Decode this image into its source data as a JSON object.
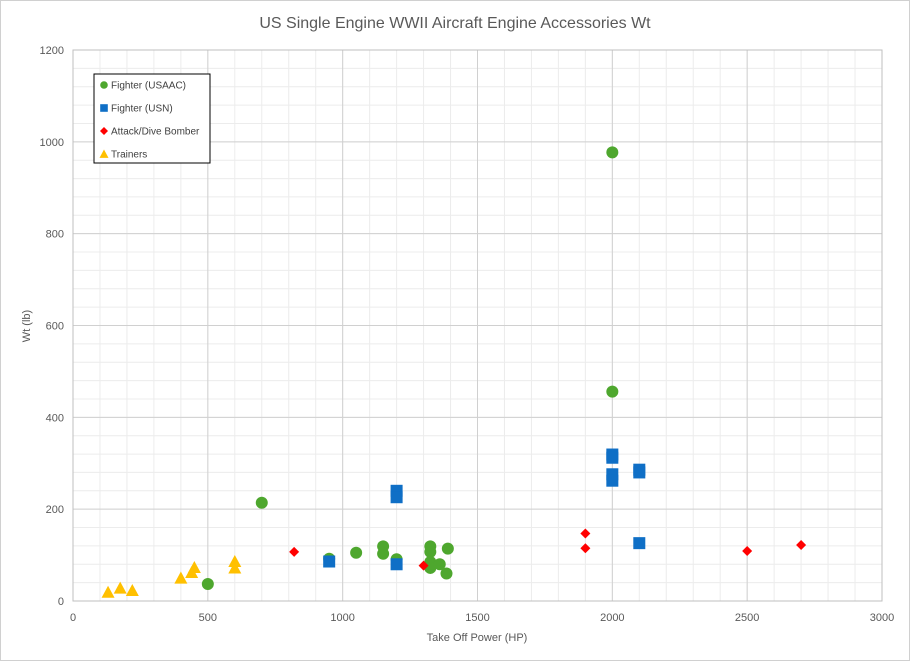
{
  "chart_data": {
    "type": "scatter",
    "title": "US Single Engine WWII Aircraft Engine  Accessories Wt",
    "xlabel": "Take Off Power (HP)",
    "ylabel": "Wt (lb)",
    "xlim": [
      0,
      3000
    ],
    "ylim": [
      0,
      1200
    ],
    "x_ticks": [
      0,
      500,
      1000,
      1500,
      2000,
      2500,
      3000
    ],
    "y_ticks": [
      0,
      200,
      400,
      600,
      800,
      1000,
      1200
    ],
    "grid": true,
    "legend_position": "top-left",
    "series": [
      {
        "name": "Fighter (USAAC)",
        "marker": "circle",
        "color": "#4ea72e",
        "points": [
          [
            500,
            37
          ],
          [
            700,
            214
          ],
          [
            950,
            92
          ],
          [
            1050,
            105
          ],
          [
            1150,
            119
          ],
          [
            1150,
            103
          ],
          [
            1200,
            91
          ],
          [
            1325,
            119
          ],
          [
            1325,
            107
          ],
          [
            1325,
            85
          ],
          [
            1325,
            72
          ],
          [
            1360,
            80
          ],
          [
            1385,
            60
          ],
          [
            1390,
            114
          ],
          [
            2000,
            977
          ],
          [
            2000,
            456
          ]
        ]
      },
      {
        "name": "Fighter (USN)",
        "marker": "square",
        "color": "#0f6fc6",
        "points": [
          [
            950,
            86
          ],
          [
            1200,
            240
          ],
          [
            1200,
            226
          ],
          [
            1200,
            80
          ],
          [
            2000,
            319
          ],
          [
            2000,
            312
          ],
          [
            2000,
            276
          ],
          [
            2000,
            262
          ],
          [
            2100,
            286
          ],
          [
            2100,
            280
          ],
          [
            2100,
            126
          ]
        ]
      },
      {
        "name": "Attack/Dive Bomber",
        "marker": "diamond",
        "color": "#ff0000",
        "points": [
          [
            820,
            107
          ],
          [
            1300,
            77
          ],
          [
            1900,
            147
          ],
          [
            1900,
            115
          ],
          [
            2500,
            109
          ],
          [
            2700,
            122
          ]
        ]
      },
      {
        "name": "Trainers",
        "marker": "triangle",
        "color": "#ffc000",
        "points": [
          [
            130,
            19
          ],
          [
            175,
            28
          ],
          [
            220,
            23
          ],
          [
            400,
            50
          ],
          [
            440,
            62
          ],
          [
            450,
            73
          ],
          [
            600,
            86
          ],
          [
            600,
            72
          ]
        ]
      }
    ]
  }
}
